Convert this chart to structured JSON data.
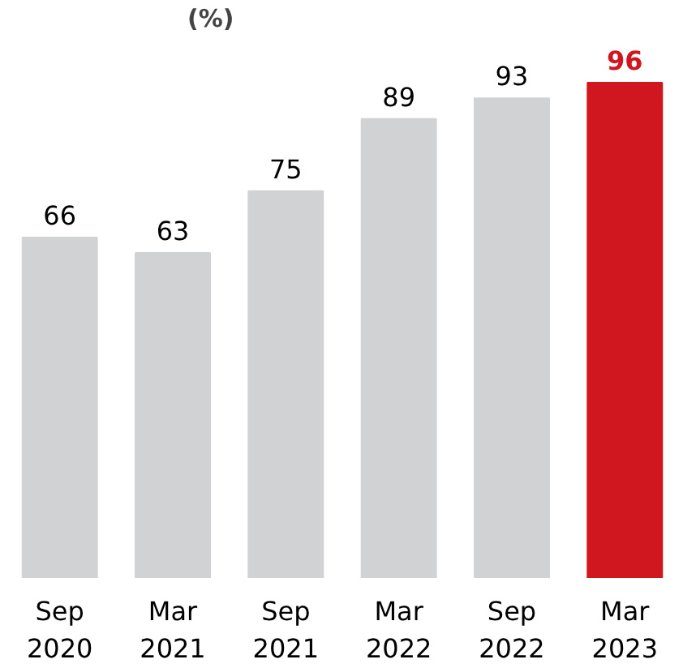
{
  "chart_data": {
    "type": "bar",
    "title": "(%)",
    "categories": [
      "Sep\n2020",
      "Mar\n2021",
      "Sep\n2021",
      "Mar\n2022",
      "Sep\n2022",
      "Mar\n2023"
    ],
    "values": [
      66,
      63,
      75,
      89,
      93,
      96
    ],
    "colors": [
      "#d1d2d4",
      "#d1d2d4",
      "#d1d2d4",
      "#d1d2d4",
      "#d1d2d4",
      "#d0161e"
    ],
    "data_labels": true,
    "grid": false
  }
}
